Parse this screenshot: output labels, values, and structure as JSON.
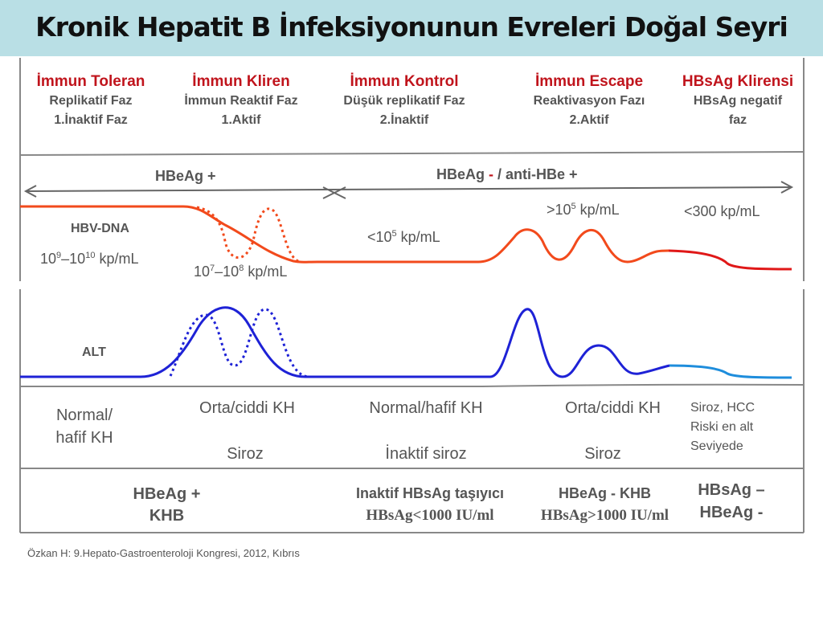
{
  "title": "Kronik Hepatit B İnfeksiyonunun Evreleri Doğal Seyri",
  "phases": [
    {
      "name": "İmmun Toleran",
      "line1": "Replikatif Faz",
      "line2": "1.İnaktif Faz"
    },
    {
      "name": "İmmun Kliren",
      "line1": "İmmun Reaktif Faz",
      "line2": "1.Aktif"
    },
    {
      "name": "İmmun Kontrol",
      "line1": "Düşük  replikatif Faz",
      "line2": "2.İnaktif"
    },
    {
      "name": "İmmun Escape",
      "line1": "Reaktivasyon Fazı",
      "line2": "2.Aktif"
    },
    {
      "name": "HBsAg Klirensi",
      "line1": "HBsAg negatif",
      "line2": "faz"
    }
  ],
  "hbeag": {
    "positive": "HBeAg +",
    "negative_prefix": "HBeAg",
    "negative_dash": " - ",
    "negative_suffix": "/ anti-HBe +"
  },
  "hbv_dna": {
    "label": "HBV-DNA",
    "v1_base": "10",
    "v1_exp1": "9",
    "v1_mid": "–10",
    "v1_exp2": "10",
    "v1_unit": " kp/mL",
    "v2_base": "10",
    "v2_exp1": "7",
    "v2_mid": "–10",
    "v2_exp2": "8",
    "v2_unit": " kp/mL",
    "v3_pre": "<10",
    "v3_exp": "5",
    "v3_unit": " kp/mL",
    "v4_pre": ">10",
    "v4_exp": "5",
    "v4_unit": " kp/mL",
    "v5": "<300 kp/mL",
    "color": "#f24a1c"
  },
  "alt": {
    "label": "ALT",
    "color": "#1e22d6",
    "light_color": "#1e8ddc"
  },
  "histology": {
    "c1a": "Normal/",
    "c1b": "hafif KH",
    "c2": "Orta/ciddi KH",
    "c2b": "Siroz",
    "c3": "Normal/hafif KH",
    "c3b": "İnaktif siroz",
    "c4": "Orta/ciddi KH",
    "c4b": "Siroz",
    "c5a": "Siroz, HCC",
    "c5b": "Riski en alt",
    "c5c": "Seviyede"
  },
  "diagnosis": {
    "d1a": "HBeAg +",
    "d1b": "KHB",
    "d2a": "Inaktif HBsAg taşıyıcı",
    "d2b": "HBsAg<1000 IU/ml",
    "d3a": "HBeAg - KHB",
    "d3b": "HBsAg>1000 IU/ml",
    "d4a": "HBsAg –",
    "d4b": "HBeAg -"
  },
  "citation": "Özkan H: 9.Hepato-Gastroenteroloji Kongresi, 2012, Kıbrıs"
}
